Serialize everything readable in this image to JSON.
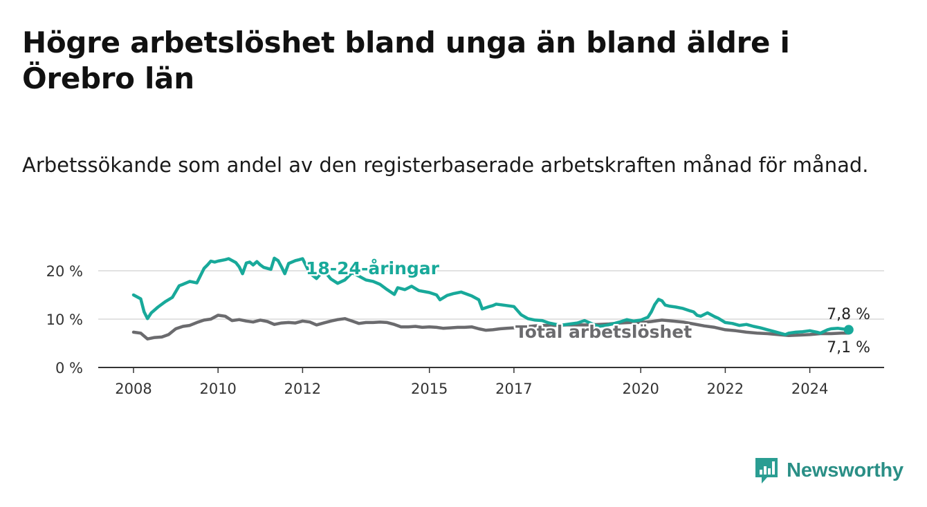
{
  "title": "Högre arbetslöshet bland unga än bland äldre i Örebro län",
  "subtitle": "Arbetssökande som andel av den registerbaserade arbetskraften månad för månad.",
  "brand": {
    "name": "Newsworthy",
    "icon": "newsworthy-logo-icon",
    "color": "#2a9d92"
  },
  "chart_data": {
    "type": "line",
    "ylim": [
      0,
      20
    ],
    "yticks": [
      {
        "value": 0,
        "label": "0 %"
      },
      {
        "value": 10,
        "label": "10 %"
      },
      {
        "value": 20,
        "label": "20 %"
      }
    ],
    "xticks": [
      {
        "value": 2008,
        "label": "2008"
      },
      {
        "value": 2010,
        "label": "2010"
      },
      {
        "value": 2012,
        "label": "2012"
      },
      {
        "value": 2015,
        "label": "2015"
      },
      {
        "value": 2017,
        "label": "2017"
      },
      {
        "value": 2020,
        "label": "2020"
      },
      {
        "value": 2022,
        "label": "2022"
      },
      {
        "value": 2024,
        "label": "2024"
      }
    ],
    "grid": true,
    "series": [
      {
        "name": "18-24-åringar",
        "color": "#18a99a",
        "end_label": "7,8 %",
        "x": [
          2008.0,
          2008.17,
          2008.25,
          2008.33,
          2008.42,
          2008.58,
          2008.75,
          2008.92,
          2009.0,
          2009.08,
          2009.17,
          2009.33,
          2009.5,
          2009.67,
          2009.75,
          2009.83,
          2009.92,
          2010.0,
          2010.17,
          2010.25,
          2010.42,
          2010.5,
          2010.58,
          2010.67,
          2010.75,
          2010.83,
          2010.92,
          2011.0,
          2011.08,
          2011.25,
          2011.33,
          2011.42,
          2011.5,
          2011.58,
          2011.67,
          2011.83,
          2011.92,
          2012.0,
          2012.17,
          2012.33,
          2012.5,
          2012.67,
          2012.83,
          2013.0,
          2013.17,
          2013.33,
          2013.5,
          2013.67,
          2013.83,
          2014.0,
          2014.17,
          2014.25,
          2014.42,
          2014.58,
          2014.75,
          2015.0,
          2015.17,
          2015.25,
          2015.42,
          2015.58,
          2015.75,
          2016.0,
          2016.17,
          2016.25,
          2016.42,
          2016.5,
          2016.58,
          2016.75,
          2017.0,
          2017.17,
          2017.33,
          2017.5,
          2017.67,
          2017.83,
          2018.0,
          2018.17,
          2018.33,
          2018.5,
          2018.67,
          2018.83,
          2019.0,
          2019.17,
          2019.33,
          2019.5,
          2019.67,
          2019.83,
          2020.0,
          2020.17,
          2020.25,
          2020.33,
          2020.42,
          2020.5,
          2020.58,
          2020.67,
          2020.83,
          2021.0,
          2021.17,
          2021.25,
          2021.33,
          2021.42,
          2021.58,
          2021.75,
          2021.83,
          2022.0,
          2022.17,
          2022.33,
          2022.5,
          2022.67,
          2022.83,
          2023.0,
          2023.17,
          2023.25,
          2023.42,
          2023.5,
          2023.67,
          2023.83,
          2024.0,
          2024.17,
          2024.25,
          2024.42,
          2024.5,
          2024.67,
          2024.75,
          2024.92
        ],
        "y": [
          15.0,
          14.2,
          11.5,
          10.1,
          11.3,
          12.5,
          13.6,
          14.5,
          15.7,
          16.9,
          17.2,
          17.8,
          17.5,
          20.5,
          21.2,
          22.0,
          21.8,
          22.0,
          22.3,
          22.5,
          21.7,
          20.8,
          19.4,
          21.6,
          21.8,
          21.2,
          21.9,
          21.2,
          20.7,
          20.3,
          22.6,
          22.1,
          20.8,
          19.4,
          21.5,
          22.1,
          22.3,
          22.5,
          19.5,
          18.4,
          20.1,
          18.3,
          17.4,
          18.1,
          19.6,
          18.9,
          18.1,
          17.8,
          17.2,
          16.1,
          15.1,
          16.5,
          16.1,
          16.8,
          15.9,
          15.5,
          15.0,
          14.0,
          14.9,
          15.3,
          15.6,
          14.8,
          14.0,
          12.1,
          12.6,
          12.8,
          13.1,
          12.9,
          12.6,
          10.9,
          10.1,
          9.8,
          9.7,
          9.2,
          8.9,
          8.8,
          9.0,
          9.2,
          9.7,
          9.1,
          8.5,
          8.7,
          9.0,
          9.4,
          9.9,
          9.6,
          9.8,
          10.4,
          11.5,
          13.0,
          14.1,
          13.8,
          12.9,
          12.7,
          12.5,
          12.2,
          11.7,
          11.5,
          10.8,
          10.6,
          11.3,
          10.5,
          10.2,
          9.3,
          9.1,
          8.7,
          8.9,
          8.5,
          8.2,
          7.8,
          7.4,
          7.2,
          6.8,
          7.1,
          7.3,
          7.4,
          7.6,
          7.3,
          7.1,
          7.8,
          8.0,
          8.1,
          8.0,
          7.8
        ]
      },
      {
        "name": "Total arbetslöshet",
        "color": "#6b6b6e",
        "end_label": "7,1 %",
        "x": [
          2008.0,
          2008.17,
          2008.33,
          2008.5,
          2008.67,
          2008.83,
          2009.0,
          2009.17,
          2009.33,
          2009.5,
          2009.67,
          2009.83,
          2010.0,
          2010.17,
          2010.33,
          2010.5,
          2010.67,
          2010.83,
          2011.0,
          2011.17,
          2011.33,
          2011.5,
          2011.67,
          2011.83,
          2012.0,
          2012.17,
          2012.33,
          2012.5,
          2012.67,
          2012.83,
          2013.0,
          2013.17,
          2013.33,
          2013.5,
          2013.67,
          2013.83,
          2014.0,
          2014.17,
          2014.33,
          2014.5,
          2014.67,
          2014.83,
          2015.0,
          2015.17,
          2015.33,
          2015.5,
          2015.67,
          2015.83,
          2016.0,
          2016.17,
          2016.33,
          2016.5,
          2016.67,
          2016.83,
          2017.0,
          2017.25,
          2017.5,
          2017.75,
          2018.0,
          2018.25,
          2018.5,
          2018.75,
          2019.0,
          2019.25,
          2019.5,
          2019.75,
          2020.0,
          2020.25,
          2020.5,
          2020.75,
          2021.0,
          2021.25,
          2021.5,
          2021.75,
          2022.0,
          2022.25,
          2022.5,
          2022.75,
          2023.0,
          2023.25,
          2023.5,
          2023.75,
          2024.0,
          2024.25,
          2024.5,
          2024.75,
          2024.92
        ],
        "y": [
          7.3,
          7.1,
          5.9,
          6.2,
          6.3,
          6.8,
          8.0,
          8.5,
          8.7,
          9.3,
          9.8,
          10.0,
          10.8,
          10.6,
          9.7,
          9.9,
          9.6,
          9.4,
          9.8,
          9.5,
          8.9,
          9.2,
          9.3,
          9.2,
          9.6,
          9.4,
          8.8,
          9.2,
          9.6,
          9.9,
          10.1,
          9.6,
          9.1,
          9.3,
          9.3,
          9.4,
          9.3,
          8.9,
          8.4,
          8.4,
          8.5,
          8.3,
          8.4,
          8.3,
          8.1,
          8.2,
          8.3,
          8.3,
          8.4,
          8.0,
          7.7,
          7.8,
          8.0,
          8.1,
          8.2,
          8.4,
          8.6,
          8.7,
          8.7,
          8.8,
          8.8,
          8.8,
          8.9,
          9.0,
          9.2,
          9.3,
          9.3,
          9.5,
          9.8,
          9.6,
          9.4,
          9.0,
          8.6,
          8.3,
          7.8,
          7.6,
          7.3,
          7.1,
          7.0,
          6.8,
          6.6,
          6.7,
          6.8,
          7.0,
          7.0,
          7.1,
          7.1
        ]
      }
    ]
  }
}
